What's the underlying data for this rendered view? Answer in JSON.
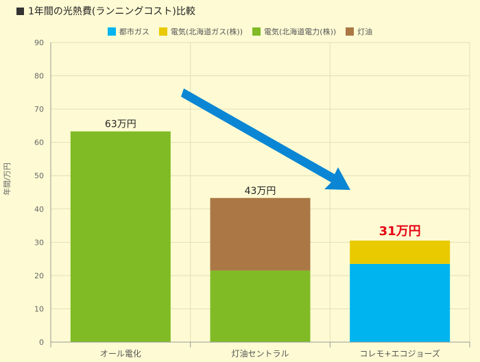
{
  "title": "1年間の光熱費(ランニングコスト)比較",
  "chart_data": {
    "type": "bar",
    "stacked": true,
    "categories": [
      "オール電化",
      "灯油セントラル",
      "コレモ+エコジョーズ"
    ],
    "series": [
      {
        "name": "都市ガス",
        "color": "#00b4ef",
        "values": [
          0,
          0,
          23.5
        ]
      },
      {
        "name": "電気(北海道ガス(株))",
        "color": "#e9c900",
        "values": [
          0,
          0,
          7
        ]
      },
      {
        "name": "電気(北海道電力(株))",
        "color": "#80bb26",
        "values": [
          63.3,
          21.5,
          0
        ]
      },
      {
        "name": "灯油",
        "color": "#aa7745",
        "values": [
          0,
          21.8,
          0
        ]
      }
    ],
    "totals_labels": [
      "63万円",
      "43万円",
      "31万円"
    ],
    "highlight_label_color": "#e60012",
    "ylabel": "年間/万円",
    "ylim": [
      0,
      90
    ],
    "yticks": [
      0,
      10,
      20,
      30,
      40,
      50,
      60,
      70,
      80,
      90
    ],
    "grid": true,
    "legend_position": "top",
    "arrow_color": "#0a86d4"
  }
}
